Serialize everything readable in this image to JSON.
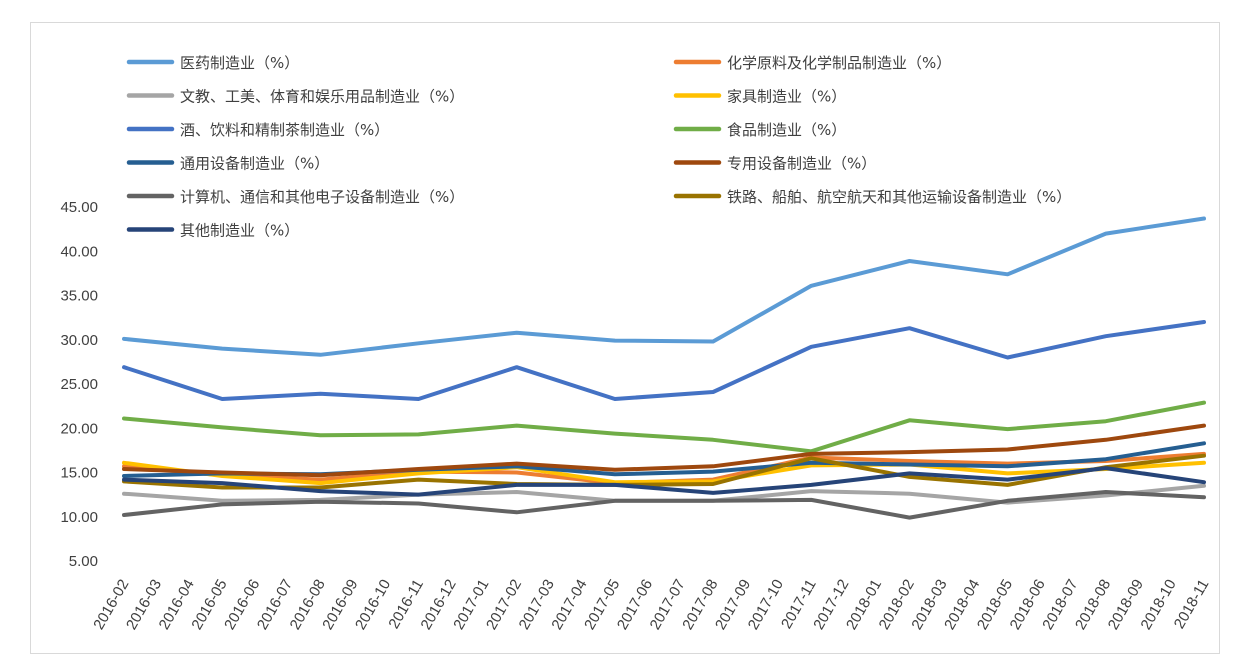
{
  "chart_data": {
    "type": "line",
    "title": "",
    "xlabel": "",
    "ylabel": "",
    "ylim": [
      5,
      45
    ],
    "yticks": [
      "5.00",
      "10.00",
      "15.00",
      "20.00",
      "25.00",
      "30.00",
      "35.00",
      "40.00",
      "45.00"
    ],
    "grid": false,
    "legend_position": "top",
    "categories": [
      "2016-02",
      "2016-03",
      "2016-04",
      "2016-05",
      "2016-06",
      "2016-07",
      "2016-08",
      "2016-09",
      "2016-10",
      "2016-11",
      "2016-12",
      "2017-01",
      "2017-02",
      "2017-03",
      "2017-04",
      "2017-05",
      "2017-06",
      "2017-07",
      "2017-08",
      "2017-09",
      "2017-10",
      "2017-11",
      "2017-12",
      "2018-01",
      "2018-02",
      "2018-03",
      "2018-04",
      "2018-05",
      "2018-06",
      "2018-07",
      "2018-08",
      "2018-09",
      "2018-10",
      "2018-11"
    ],
    "series": [
      {
        "name": "医药制造业（%）",
        "color": "#5b9bd5",
        "x": [
          "2016-02",
          "2016-05",
          "2016-08",
          "2016-11",
          "2017-02",
          "2017-05",
          "2017-08",
          "2017-11",
          "2018-02",
          "2018-05",
          "2018-08",
          "2018-11"
        ],
        "values": [
          30.1,
          29.0,
          28.3,
          29.6,
          30.8,
          29.9,
          29.8,
          36.1,
          38.9,
          37.4,
          42.0,
          43.7
        ]
      },
      {
        "name": "化学原料及化学制品制造业（%）",
        "color": "#ed7d31",
        "x": [
          "2016-02",
          "2016-05",
          "2016-08",
          "2016-11",
          "2017-02",
          "2017-05",
          "2017-08",
          "2017-11",
          "2018-02",
          "2018-05",
          "2018-08",
          "2018-11"
        ],
        "values": [
          15.7,
          14.7,
          14.2,
          15.1,
          15.0,
          13.8,
          14.2,
          16.7,
          16.3,
          16.0,
          16.3,
          17.1
        ]
      },
      {
        "name": "文教、工美、体育和娱乐用品制造业（%）",
        "color": "#a5a5a5",
        "x": [
          "2016-02",
          "2016-05",
          "2016-08",
          "2016-11",
          "2017-02",
          "2017-05",
          "2017-08",
          "2017-11",
          "2018-02",
          "2018-05",
          "2018-08",
          "2018-11"
        ],
        "values": [
          12.6,
          11.8,
          11.9,
          12.5,
          12.8,
          11.8,
          11.8,
          12.9,
          12.6,
          11.6,
          12.4,
          13.5
        ]
      },
      {
        "name": "家具制造业（%）",
        "color": "#ffc000",
        "x": [
          "2016-02",
          "2016-05",
          "2016-08",
          "2016-11",
          "2017-02",
          "2017-05",
          "2017-08",
          "2017-11",
          "2018-02",
          "2018-05",
          "2018-08",
          "2018-11"
        ],
        "values": [
          16.1,
          14.6,
          13.8,
          14.9,
          15.6,
          13.9,
          14.0,
          15.8,
          15.9,
          14.9,
          15.4,
          16.1
        ]
      },
      {
        "name": "酒、饮料和精制茶制造业（%）",
        "color": "#4472c4",
        "x": [
          "2016-02",
          "2016-05",
          "2016-08",
          "2016-11",
          "2017-02",
          "2017-05",
          "2017-08",
          "2017-11",
          "2018-02",
          "2018-05",
          "2018-08",
          "2018-11"
        ],
        "values": [
          26.9,
          23.3,
          23.9,
          23.3,
          26.9,
          23.3,
          24.1,
          29.2,
          31.3,
          28.0,
          30.4,
          32.0
        ]
      },
      {
        "name": "食品制造业（%）",
        "color": "#70ad47",
        "x": [
          "2016-02",
          "2016-05",
          "2016-08",
          "2016-11",
          "2017-02",
          "2017-05",
          "2017-08",
          "2017-11",
          "2018-02",
          "2018-05",
          "2018-08",
          "2018-11"
        ],
        "values": [
          21.1,
          20.1,
          19.2,
          19.3,
          20.3,
          19.4,
          18.7,
          17.4,
          20.9,
          19.9,
          20.8,
          22.9
        ]
      },
      {
        "name": "通用设备制造业（%）",
        "color": "#255e91",
        "x": [
          "2016-02",
          "2016-05",
          "2016-08",
          "2016-11",
          "2017-02",
          "2017-05",
          "2017-08",
          "2017-11",
          "2018-02",
          "2018-05",
          "2018-08",
          "2018-11"
        ],
        "values": [
          14.6,
          14.9,
          14.8,
          15.3,
          15.7,
          14.8,
          15.1,
          16.1,
          15.9,
          15.7,
          16.5,
          18.3
        ]
      },
      {
        "name": "专用设备制造业（%）",
        "color": "#9e480e",
        "x": [
          "2016-02",
          "2016-05",
          "2016-08",
          "2016-11",
          "2017-02",
          "2017-05",
          "2017-08",
          "2017-11",
          "2018-02",
          "2018-05",
          "2018-08",
          "2018-11"
        ],
        "values": [
          15.4,
          15.0,
          14.7,
          15.4,
          16.0,
          15.3,
          15.7,
          17.1,
          17.3,
          17.6,
          18.7,
          20.3
        ]
      },
      {
        "name": "计算机、通信和其他电子设备制造业（%）",
        "color": "#636363",
        "x": [
          "2016-02",
          "2016-05",
          "2016-08",
          "2016-11",
          "2017-02",
          "2017-05",
          "2017-08",
          "2017-11",
          "2018-02",
          "2018-05",
          "2018-08",
          "2018-11"
        ],
        "values": [
          10.2,
          11.4,
          11.7,
          11.5,
          10.5,
          11.8,
          11.8,
          11.9,
          9.9,
          11.8,
          12.8,
          12.2
        ]
      },
      {
        "name": "铁路、船舶、航空航天和其他运输设备制造业（%）",
        "color": "#997300",
        "x": [
          "2016-02",
          "2016-05",
          "2016-08",
          "2016-11",
          "2017-02",
          "2017-05",
          "2017-08",
          "2017-11",
          "2018-02",
          "2018-05",
          "2018-08",
          "2018-11"
        ],
        "values": [
          14.0,
          13.3,
          13.3,
          14.2,
          13.7,
          13.6,
          13.7,
          16.6,
          14.5,
          13.6,
          15.6,
          16.9
        ]
      },
      {
        "name": "其他制造业（%）",
        "color": "#264478",
        "x": [
          "2016-02",
          "2016-05",
          "2016-08",
          "2016-11",
          "2017-02",
          "2017-05",
          "2017-08",
          "2017-11",
          "2018-02",
          "2018-05",
          "2018-08",
          "2018-11"
        ],
        "values": [
          14.2,
          13.8,
          12.9,
          12.5,
          13.6,
          13.6,
          12.7,
          13.6,
          14.9,
          14.2,
          15.5,
          13.9
        ]
      }
    ]
  }
}
